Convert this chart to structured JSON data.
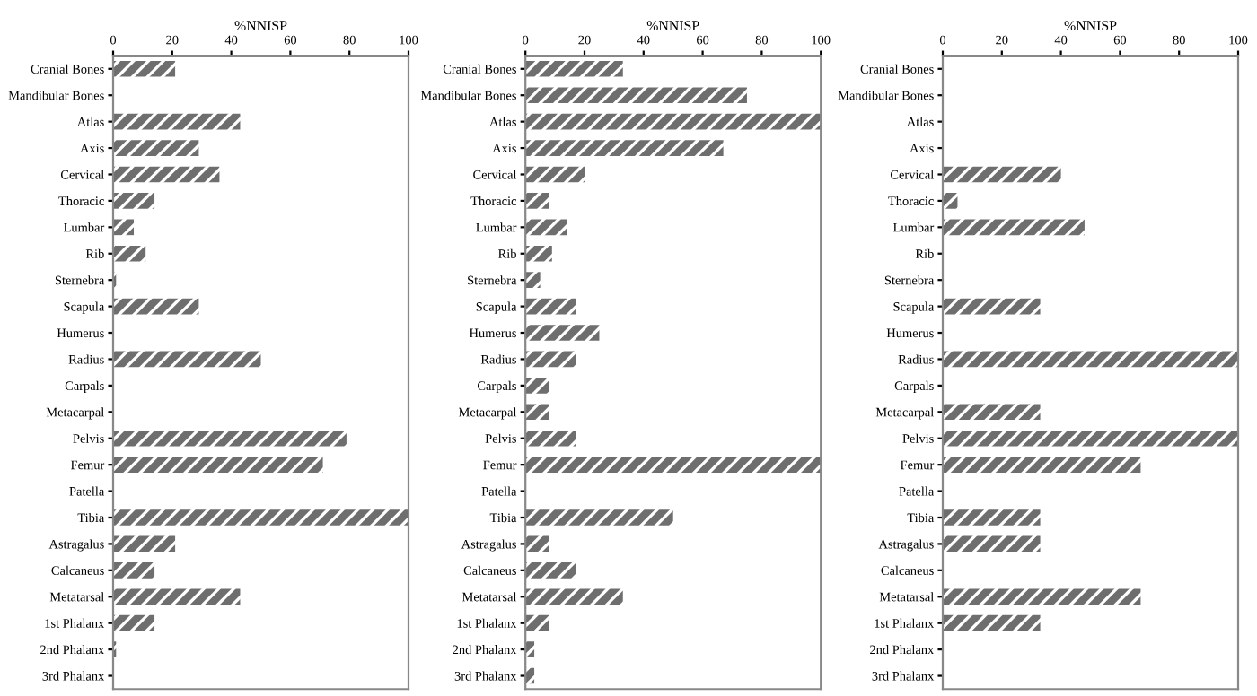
{
  "chart_data": [
    {
      "type": "bar",
      "orientation": "horizontal",
      "xlabel": "%NNISP",
      "categories": [
        "Cranial Bones",
        "Mandibular Bones",
        "Atlas",
        "Axis",
        "Cervical",
        "Thoracic",
        "Lumbar",
        "Rib",
        "Sternebra",
        "Scapula",
        "Humerus",
        "Radius",
        "Carpals",
        "Metacarpal",
        "Pelvis",
        "Femur",
        "Patella",
        "Tibia",
        "Astragalus",
        "Calcaneus",
        "Metatarsal",
        "1st Phalanx",
        "2nd Phalanx",
        "3rd Phalanx"
      ],
      "series": [
        {
          "color": "#6e6e6e",
          "values": [
            21,
            0,
            43,
            29,
            36,
            14,
            7,
            11,
            1,
            29,
            0,
            50,
            0,
            0,
            79,
            71,
            0,
            100,
            21,
            14,
            43,
            14,
            1,
            0
          ]
        }
      ],
      "xlim": [
        0,
        100
      ],
      "xticks": [
        0,
        20,
        40,
        60,
        80,
        100
      ],
      "grid": false
    },
    {
      "type": "bar",
      "orientation": "horizontal",
      "xlabel": "%NNISP",
      "categories": [
        "Cranial Bones",
        "Mandibular Bones",
        "Atlas",
        "Axis",
        "Cervical",
        "Thoracic",
        "Lumbar",
        "Rib",
        "Sternebra",
        "Scapula",
        "Humerus",
        "Radius",
        "Carpals",
        "Metacarpal",
        "Pelvis",
        "Femur",
        "Patella",
        "Tibia",
        "Astragalus",
        "Calcaneus",
        "Metatarsal",
        "1st Phalanx",
        "2nd Phalanx",
        "3rd Phalanx"
      ],
      "series": [
        {
          "color": "#6e6e6e",
          "values": [
            33,
            75,
            100,
            67,
            20,
            8,
            14,
            9,
            5,
            17,
            25,
            17,
            8,
            8,
            17,
            100,
            0,
            50,
            8,
            17,
            33,
            8,
            3,
            3
          ]
        }
      ],
      "xlim": [
        0,
        100
      ],
      "xticks": [
        0,
        20,
        40,
        60,
        80,
        100
      ],
      "grid": false
    },
    {
      "type": "bar",
      "orientation": "horizontal",
      "xlabel": "%NNISP",
      "categories": [
        "Cranial Bones",
        "Mandibular Bones",
        "Atlas",
        "Axis",
        "Cervical",
        "Thoracic",
        "Lumbar",
        "Rib",
        "Sternebra",
        "Scapula",
        "Humerus",
        "Radius",
        "Carpals",
        "Metacarpal",
        "Pelvis",
        "Femur",
        "Patella",
        "Tibia",
        "Astragalus",
        "Calcaneus",
        "Metatarsal",
        "1st Phalanx",
        "2nd Phalanx",
        "3rd Phalanx"
      ],
      "series": [
        {
          "color": "#6e6e6e",
          "values": [
            0,
            0,
            0,
            0,
            40,
            5,
            48,
            0,
            0,
            33,
            0,
            100,
            0,
            33,
            100,
            67,
            0,
            33,
            33,
            0,
            67,
            33,
            0,
            0
          ]
        }
      ],
      "xlim": [
        0,
        100
      ],
      "xticks": [
        0,
        20,
        40,
        60,
        80,
        100
      ],
      "grid": false
    }
  ]
}
